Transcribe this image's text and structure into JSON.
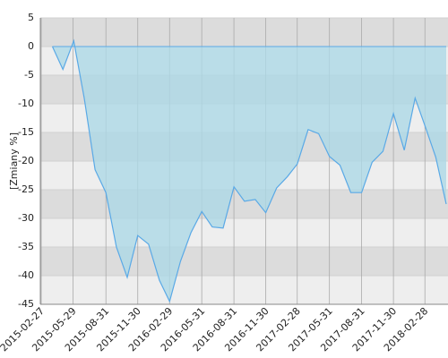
{
  "chart_data": {
    "type": "area",
    "y_label": "[Zmiany %]",
    "x": [
      "2015-03-31",
      "2015-04-30",
      "2015-05-31",
      "2015-06-30",
      "2015-07-31",
      "2015-08-31",
      "2015-09-30",
      "2015-10-31",
      "2015-11-30",
      "2015-12-31",
      "2016-01-31",
      "2016-02-29",
      "2016-03-31",
      "2016-04-30",
      "2016-05-31",
      "2016-06-30",
      "2016-07-31",
      "2016-08-31",
      "2016-09-30",
      "2016-10-31",
      "2016-11-30",
      "2016-12-31",
      "2017-01-31",
      "2017-02-28",
      "2017-03-31",
      "2017-04-30",
      "2017-05-31",
      "2017-06-30",
      "2017-07-31",
      "2017-08-31",
      "2017-09-30",
      "2017-10-31",
      "2017-11-30",
      "2017-12-31",
      "2018-01-31",
      "2018-02-28",
      "2018-03-31",
      "2018-04-30"
    ],
    "values": [
      0,
      -4,
      1,
      -9,
      -21.5,
      -25.5,
      -35,
      -40.3,
      -33,
      -34.5,
      -40.8,
      -44.5,
      -37.5,
      -32.5,
      -28.8,
      -31.5,
      -31.7,
      -24.5,
      -27,
      -26.7,
      -29,
      -24.7,
      -22.7,
      -20.5,
      -14.5,
      -15.2,
      -19.2,
      -20.7,
      -25.5,
      -25.5,
      -20.2,
      -18.3,
      -11.7,
      -18.1,
      -9,
      -13.8,
      -19.3,
      -27.5
    ],
    "line_color": "#5aa9e6",
    "fill_color": "#add8e6",
    "xlim": [
      "2015-02-27",
      "2018-05-05"
    ],
    "xticks": [
      "2015-02-27",
      "2015-05-29",
      "2015-08-31",
      "2015-11-30",
      "2016-02-29",
      "2016-05-31",
      "2016-08-31",
      "2016-11-30",
      "2017-02-28",
      "2017-05-31",
      "2017-08-31",
      "2017-11-30",
      "2018-02-28"
    ],
    "ylim": [
      -45,
      5
    ],
    "yticks": [
      5,
      0,
      -5,
      -10,
      -15,
      -20,
      -25,
      -30,
      -35,
      -40,
      -45
    ],
    "grid": true
  }
}
